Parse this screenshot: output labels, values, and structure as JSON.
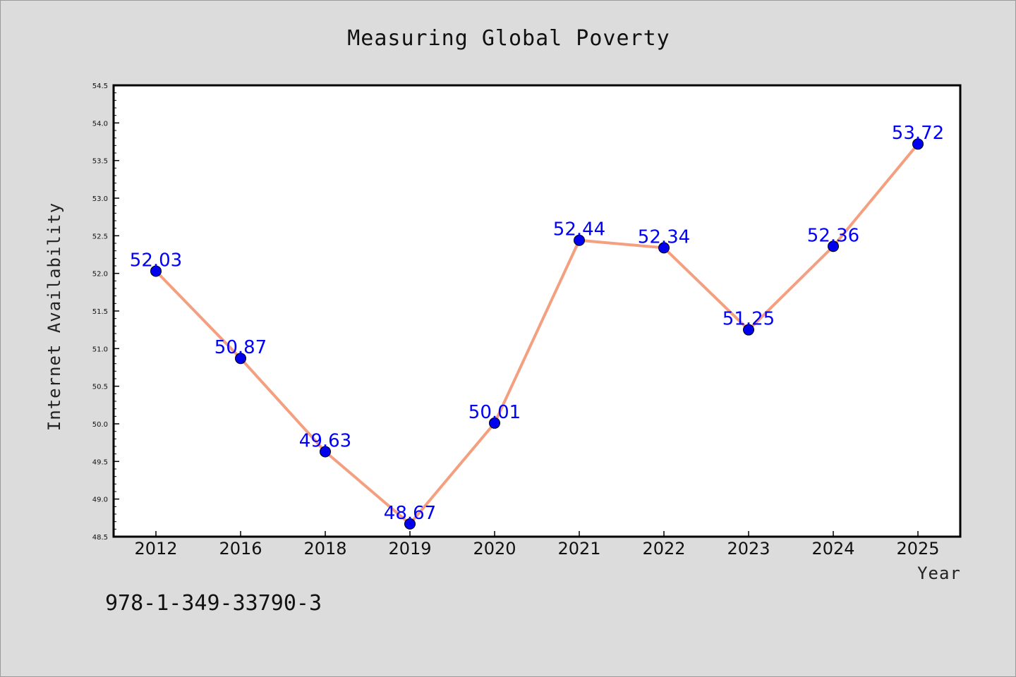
{
  "chart_data": {
    "type": "line",
    "title": "Measuring Global Poverty",
    "xlabel": "Year",
    "ylabel": "Internet Availability",
    "categories": [
      "2012",
      "2016",
      "2018",
      "2019",
      "2020",
      "2021",
      "2022",
      "2023",
      "2024",
      "2025"
    ],
    "series": [
      {
        "values": [
          52.03,
          50.87,
          49.63,
          48.67,
          50.01,
          52.44,
          52.34,
          51.25,
          52.36,
          53.72
        ],
        "line_color": "#f4a080",
        "marker_color": "#0000ee",
        "label_color": "#0000ff"
      }
    ],
    "data_labels": [
      "52.03",
      "50.87",
      "49.63",
      "48.67",
      "50.01",
      "52.44",
      "52.34",
      "51.25",
      "52.36",
      "53.72"
    ],
    "ylim": [
      48.5,
      54.5
    ],
    "yticks": [
      "48.5",
      "49.0",
      "49.5",
      "50.0",
      "50.5",
      "51.0",
      "51.5",
      "52.0",
      "52.5",
      "53.0",
      "53.5",
      "54.0",
      "54.5"
    ],
    "grid": false,
    "legend": "none"
  },
  "footer": {
    "text": "978-1-349-33790-3"
  }
}
